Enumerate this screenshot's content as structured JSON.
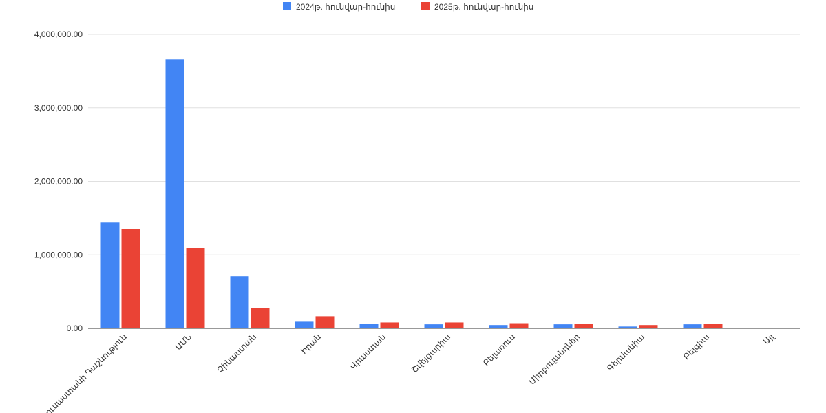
{
  "chart_data": {
    "type": "bar",
    "categories": [
      "Ռուսաստանի Դաշնություն",
      "ԱՄՆ",
      "Չինաստան",
      "Իրան",
      "Վրաստան",
      "Շվեյցարիա",
      "Բելառուս",
      "Միրբուլանդներ",
      "Գերմանիա",
      "Բելգիա",
      "Այլ"
    ],
    "series": [
      {
        "name": "2024թ. հունվար-հունիս",
        "color": "#4285f4",
        "values": [
          1440000,
          3660000,
          710000,
          90000,
          65000,
          55000,
          45000,
          55000,
          25000,
          55000,
          0
        ]
      },
      {
        "name": "2025թ. հունվար-հունիս",
        "color": "#ea4335",
        "values": [
          1350000,
          1090000,
          280000,
          165000,
          80000,
          80000,
          70000,
          58000,
          45000,
          58000,
          0
        ]
      }
    ],
    "yticks": [
      "0.00",
      "1,000,000.00",
      "2,000,000.00",
      "3,000,000.00",
      "4,000,000.00"
    ],
    "ylim": [
      0,
      4000000
    ],
    "grid": true,
    "legend_position": "top"
  }
}
